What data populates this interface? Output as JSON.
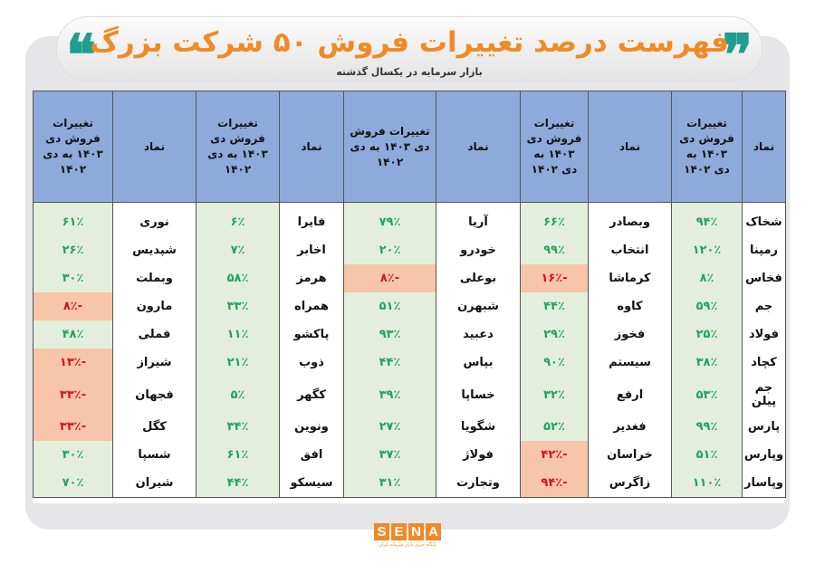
{
  "header": {
    "title": "فهرست درصد تغییرات فروش ۵۰ شرکت بزرگ",
    "subtitle": "بازار سرمایه در یکسال گذشته"
  },
  "colors": {
    "accent": "#f08a24",
    "quote": "#1f9d8f",
    "header_bg": "#8eaadb",
    "positive_bg": "#e3efdc",
    "positive_text": "#22a35a",
    "negative_bg": "#f7c6a8",
    "negative_text": "#d0141e"
  },
  "table": {
    "columns": [
      {
        "symbol_header": "نماد",
        "change_header": "تغییرات فروش دی ۱۴۰۳ به دی ۱۴۰۲"
      },
      {
        "symbol_header": "نماد",
        "change_header": "تغییرات فروش دی ۱۴۰۳ به دی ۱۴۰۲"
      },
      {
        "symbol_header": "نماد",
        "change_header": "تغییرات فروش دی ۱۴۰۳ به دی ۱۴۰۲"
      },
      {
        "symbol_header": "نماد",
        "change_header": "تغییرات فروش دی ۱۴۰۳ به دی ۱۴۰۲"
      },
      {
        "symbol_header": "نماد",
        "change_header": "تغییرات فروش دی ۱۴۰۳ به دی ۱۴۰۲"
      }
    ],
    "rows": [
      [
        [
          "شخاک",
          "۹۴٪"
        ],
        [
          "وبصادر",
          "۶۶٪"
        ],
        [
          "آریا",
          "۷۹٪"
        ],
        [
          "فایرا",
          "۶٪"
        ],
        [
          "نوری",
          "۶۱٪"
        ]
      ],
      [
        [
          "رمپنا",
          "۱۲۰٪"
        ],
        [
          "انتخاب",
          "۹۹٪"
        ],
        [
          "خودرو",
          "۲۰٪"
        ],
        [
          "اخابر",
          "۷٪"
        ],
        [
          "شپدیس",
          "۲۶٪"
        ]
      ],
      [
        [
          "فخاس",
          "۸٪"
        ],
        [
          "کرماشا",
          "-۱۶٪"
        ],
        [
          "بوعلی",
          "-۸٪"
        ],
        [
          "هرمز",
          "۵۸٪"
        ],
        [
          "وبملت",
          "۳۰٪"
        ]
      ],
      [
        [
          "جم",
          "۵۹٪"
        ],
        [
          "کاوه",
          "۴۴٪"
        ],
        [
          "شبهرن",
          "۵۱٪"
        ],
        [
          "همراه",
          "۳۳٪"
        ],
        [
          "مارون",
          "-۸٪"
        ]
      ],
      [
        [
          "فولاد",
          "۲۵٪"
        ],
        [
          "فخوز",
          "۲۹٪"
        ],
        [
          "دعبید",
          "۹۳٪"
        ],
        [
          "پاکشو",
          "۱۱٪"
        ],
        [
          "فملی",
          "۴۸٪"
        ]
      ],
      [
        [
          "کچاد",
          "۳۸٪"
        ],
        [
          "سیستم",
          "۹۰٪"
        ],
        [
          "بپاس",
          "۴۴٪"
        ],
        [
          "ذوب",
          "۲۱٪"
        ],
        [
          "شیراز",
          "-۱۳٪"
        ]
      ],
      [
        [
          "جم پیلن",
          "۵۳٪"
        ],
        [
          "ارفع",
          "۳۲٪"
        ],
        [
          "خساپا",
          "۳۹٪"
        ],
        [
          "کگهر",
          "۵٪"
        ],
        [
          "فجهان",
          "-۳۳٪"
        ]
      ],
      [
        [
          "پارس",
          "۹۹٪"
        ],
        [
          "فغدیر",
          "۵۲٪"
        ],
        [
          "شگویا",
          "۲۷٪"
        ],
        [
          "ونوین",
          "۳۴٪"
        ],
        [
          "کگل",
          "-۳۳٪"
        ]
      ],
      [
        [
          "وپارس",
          "۵۱٪"
        ],
        [
          "خراسان",
          "-۴۲٪"
        ],
        [
          "فولاژ",
          "۳۷٪"
        ],
        [
          "افق",
          "۶۱٪"
        ],
        [
          "شسپا",
          "۳۰٪"
        ]
      ],
      [
        [
          "وپاسار",
          "۱۱۰٪"
        ],
        [
          "زاگرس",
          "-۹۴٪"
        ],
        [
          "وتجارت",
          "۳۱٪"
        ],
        [
          "سیسکو",
          "۴۴٪"
        ],
        [
          "شیران",
          "۷۰٪"
        ]
      ]
    ]
  },
  "logo": {
    "text": "SENA",
    "tagline": "پایگاه خبری بازار سرمایه ایران"
  }
}
